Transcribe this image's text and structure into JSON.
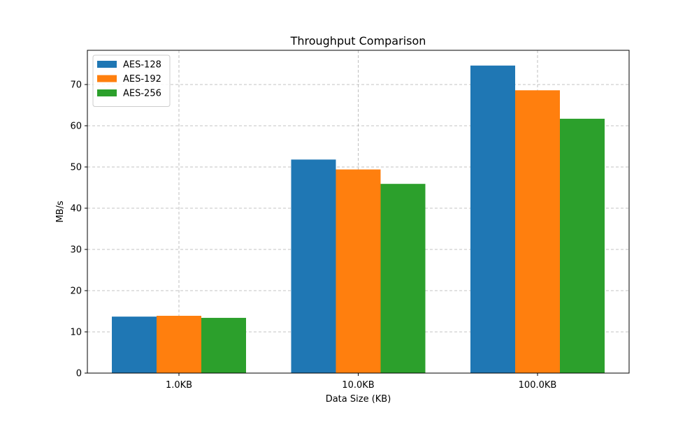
{
  "chart_data": {
    "type": "bar",
    "title": "Throughput Comparison",
    "xlabel": "Data Size (KB)",
    "ylabel": "MB/s",
    "categories": [
      "1.0KB",
      "10.0KB",
      "100.0KB"
    ],
    "series": [
      {
        "name": "AES-128",
        "color": "#1f77b4",
        "values": [
          13.7,
          51.8,
          74.6
        ]
      },
      {
        "name": "AES-192",
        "color": "#ff7f0e",
        "values": [
          13.9,
          49.4,
          68.6
        ]
      },
      {
        "name": "AES-256",
        "color": "#2ca02c",
        "values": [
          13.4,
          45.9,
          61.7
        ]
      }
    ],
    "ylim": [
      0,
      78.3
    ],
    "yticks": [
      0,
      10,
      20,
      30,
      40,
      50,
      60,
      70
    ],
    "grid": true,
    "legend_position": "top-left"
  }
}
